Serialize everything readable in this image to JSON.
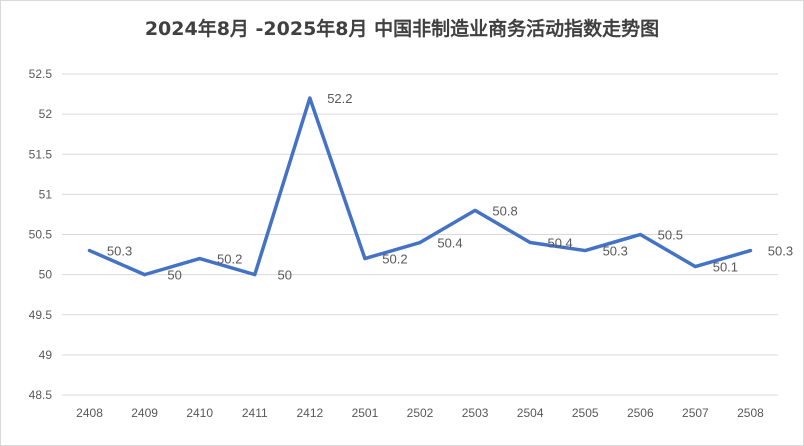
{
  "chart_data": {
    "type": "line",
    "title": "2024年8月 -2025年8月 中国非制造业商务活动指数走势图",
    "xlabel": "",
    "ylabel": "",
    "categories": [
      "2408",
      "2409",
      "2410",
      "2411",
      "2412",
      "2501",
      "2502",
      "2503",
      "2504",
      "2505",
      "2506",
      "2507",
      "2508"
    ],
    "series": [
      {
        "values": [
          50.3,
          50,
          50.2,
          50,
          52.2,
          50.2,
          50.4,
          50.8,
          50.4,
          50.3,
          50.5,
          50.1,
          50.3
        ]
      }
    ],
    "ylim": [
      48.5,
      52.5
    ],
    "yticks": [
      "48.5",
      "49",
      "49.5",
      "50",
      "50.5",
      "51",
      "51.5",
      "52",
      "52.5"
    ],
    "grid": true,
    "legend": "none",
    "line_color": "#4472C4",
    "data_labels": true
  }
}
